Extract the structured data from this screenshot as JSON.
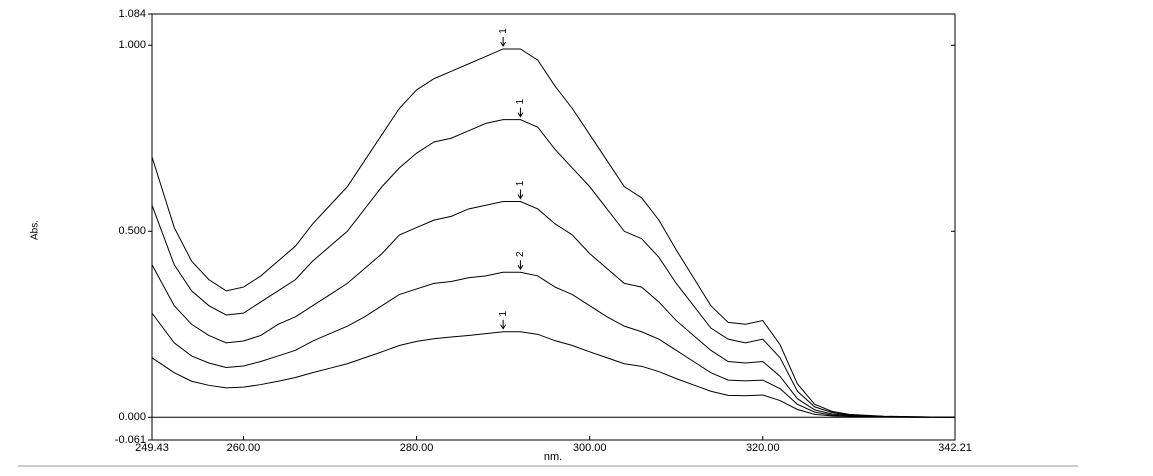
{
  "chart_data": {
    "type": "line",
    "x_label": "nm.",
    "y_label": "Abs.",
    "x": [
      249.43,
      252,
      254,
      256,
      258,
      260,
      262,
      264,
      266,
      268,
      270,
      272,
      274,
      276,
      278,
      280,
      282,
      284,
      286,
      288,
      290,
      292,
      294,
      296,
      298,
      300,
      302,
      304,
      306,
      308,
      310,
      312,
      314,
      316,
      318,
      320,
      322,
      324,
      326,
      328,
      330,
      334,
      338,
      342.21
    ],
    "series": [
      {
        "color": "#000000",
        "values": [
          0.7,
          0.51,
          0.42,
          0.37,
          0.34,
          0.35,
          0.38,
          0.42,
          0.46,
          0.52,
          0.57,
          0.62,
          0.69,
          0.76,
          0.83,
          0.88,
          0.91,
          0.93,
          0.95,
          0.97,
          0.99,
          0.99,
          0.96,
          0.89,
          0.83,
          0.76,
          0.69,
          0.62,
          0.59,
          0.53,
          0.45,
          0.375,
          0.3,
          0.255,
          0.25,
          0.26,
          0.195,
          0.09,
          0.035,
          0.016,
          0.008,
          0.003,
          0.001,
          0.0
        ]
      },
      {
        "color": "#000000",
        "values": [
          0.57,
          0.41,
          0.34,
          0.3,
          0.275,
          0.28,
          0.31,
          0.34,
          0.37,
          0.42,
          0.46,
          0.5,
          0.56,
          0.62,
          0.67,
          0.71,
          0.74,
          0.75,
          0.77,
          0.79,
          0.8,
          0.8,
          0.78,
          0.72,
          0.67,
          0.62,
          0.56,
          0.5,
          0.48,
          0.43,
          0.36,
          0.3,
          0.24,
          0.21,
          0.2,
          0.21,
          0.16,
          0.07,
          0.028,
          0.013,
          0.006,
          0.002,
          0.001,
          0.0
        ]
      },
      {
        "color": "#000000",
        "values": [
          0.41,
          0.3,
          0.25,
          0.22,
          0.2,
          0.205,
          0.22,
          0.25,
          0.27,
          0.3,
          0.33,
          0.36,
          0.4,
          0.44,
          0.49,
          0.51,
          0.53,
          0.54,
          0.56,
          0.57,
          0.58,
          0.58,
          0.56,
          0.52,
          0.49,
          0.44,
          0.4,
          0.36,
          0.35,
          0.31,
          0.26,
          0.22,
          0.18,
          0.15,
          0.146,
          0.15,
          0.11,
          0.05,
          0.02,
          0.009,
          0.005,
          0.002,
          0.001,
          0.0
        ]
      },
      {
        "color": "#000000",
        "values": [
          0.28,
          0.2,
          0.165,
          0.146,
          0.134,
          0.138,
          0.15,
          0.165,
          0.18,
          0.205,
          0.225,
          0.245,
          0.27,
          0.3,
          0.33,
          0.345,
          0.36,
          0.365,
          0.375,
          0.38,
          0.39,
          0.39,
          0.38,
          0.35,
          0.33,
          0.3,
          0.27,
          0.245,
          0.23,
          0.21,
          0.18,
          0.15,
          0.12,
          0.1,
          0.098,
          0.1,
          0.077,
          0.035,
          0.014,
          0.006,
          0.003,
          0.001,
          0.0,
          0.0
        ]
      },
      {
        "color": "#000000",
        "values": [
          0.16,
          0.12,
          0.097,
          0.086,
          0.079,
          0.081,
          0.088,
          0.097,
          0.107,
          0.12,
          0.132,
          0.144,
          0.16,
          0.176,
          0.193,
          0.204,
          0.211,
          0.216,
          0.22,
          0.225,
          0.23,
          0.23,
          0.223,
          0.206,
          0.193,
          0.176,
          0.16,
          0.144,
          0.137,
          0.123,
          0.104,
          0.087,
          0.07,
          0.059,
          0.058,
          0.06,
          0.045,
          0.021,
          0.008,
          0.004,
          0.002,
          0.001,
          0.0,
          0.0
        ]
      }
    ],
    "annotations": [
      {
        "text": "1",
        "x": 290,
        "y": 0.99
      },
      {
        "text": "1",
        "x": 292,
        "y": 0.8
      },
      {
        "text": "1",
        "x": 292,
        "y": 0.58
      },
      {
        "text": "2",
        "x": 292,
        "y": 0.39
      },
      {
        "text": "1",
        "x": 290,
        "y": 0.23
      }
    ],
    "xlim": [
      249.43,
      342.21
    ],
    "ylim": [
      -0.061,
      1.084
    ],
    "xticks": [
      {
        "value": 249.43,
        "label": "249.43"
      },
      {
        "value": 260,
        "label": "260.00"
      },
      {
        "value": 280,
        "label": "280.00"
      },
      {
        "value": 300,
        "label": "300.00"
      },
      {
        "value": 320,
        "label": "320.00"
      },
      {
        "value": 342.21,
        "label": "342.21"
      }
    ],
    "yticks": [
      {
        "value": -0.061,
        "label": "-0.061"
      },
      {
        "value": 0,
        "label": "0.000"
      },
      {
        "value": 0.5,
        "label": "0.500"
      },
      {
        "value": 1,
        "label": "1.000"
      },
      {
        "value": 1.084,
        "label": "1.084"
      }
    ]
  }
}
